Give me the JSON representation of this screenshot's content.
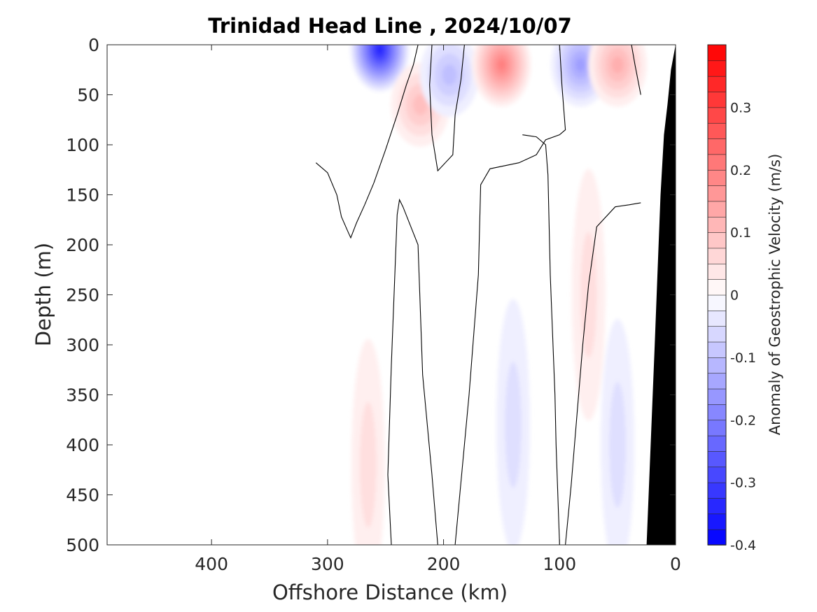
{
  "chart_data": {
    "type": "heatmap",
    "title": "Trinidad Head Line , 2024/10/07",
    "xlabel": "Offshore Distance (km)",
    "ylabel": "Depth (m)",
    "x_reversed": true,
    "y_reversed": true,
    "xlim": [
      0,
      490
    ],
    "ylim": [
      0,
      500
    ],
    "xticks": [
      400,
      300,
      200,
      100,
      0
    ],
    "yticks": [
      0,
      50,
      100,
      150,
      200,
      250,
      300,
      350,
      400,
      450,
      500
    ],
    "colorbar": {
      "label": "Anomaly of Geostrophic Velocity (m/s)",
      "range": [
        -0.4,
        0.4
      ],
      "step": 0.025,
      "ticks": [
        0.3,
        0.2,
        0.1,
        0,
        -0.1,
        -0.2,
        -0.3,
        -0.4
      ],
      "negative_color": "#0000ff",
      "positive_color": "#ff0000",
      "zero_color": "#ffffff"
    },
    "features": [
      {
        "kind": "core",
        "sign": "negative",
        "x_km": 255,
        "depth_m": 5,
        "peak": -0.35
      },
      {
        "kind": "core",
        "sign": "positive",
        "x_km": 220,
        "depth_m": 60,
        "peak": 0.1
      },
      {
        "kind": "core",
        "sign": "negative",
        "x_km": 195,
        "depth_m": 30,
        "peak": -0.1
      },
      {
        "kind": "core",
        "sign": "positive",
        "x_km": 150,
        "depth_m": 20,
        "peak": 0.2
      },
      {
        "kind": "core",
        "sign": "negative",
        "x_km": 82,
        "depth_m": 20,
        "peak": -0.15
      },
      {
        "kind": "core",
        "sign": "positive",
        "x_km": 50,
        "depth_m": 20,
        "peak": 0.12
      },
      {
        "kind": "deep_band",
        "sign": "positive",
        "x_km": 265,
        "depth_m": 420,
        "peak": 0.06
      },
      {
        "kind": "deep_band",
        "sign": "negative",
        "x_km": 140,
        "depth_m": 380,
        "peak": -0.05
      },
      {
        "kind": "deep_band",
        "sign": "positive",
        "x_km": 75,
        "depth_m": 250,
        "peak": 0.04
      },
      {
        "kind": "deep_band",
        "sign": "negative",
        "x_km": 50,
        "depth_m": 400,
        "peak": -0.05
      }
    ],
    "zero_contours": [
      [
        [
          310,
          118
        ],
        [
          300,
          128
        ],
        [
          292,
          150
        ],
        [
          288,
          172
        ],
        [
          282,
          188
        ],
        [
          280,
          193
        ],
        [
          275,
          178
        ],
        [
          268,
          160
        ],
        [
          260,
          138
        ],
        [
          250,
          105
        ],
        [
          240,
          70
        ],
        [
          232,
          40
        ],
        [
          226,
          20
        ],
        [
          222,
          0
        ]
      ],
      [
        [
          210,
          0
        ],
        [
          212,
          40
        ],
        [
          210,
          90
        ],
        [
          205,
          126
        ],
        [
          192,
          110
        ],
        [
          190,
          70
        ],
        [
          185,
          35
        ],
        [
          182,
          0
        ]
      ],
      [
        [
          100,
          0
        ],
        [
          98,
          40
        ],
        [
          95,
          85
        ],
        [
          100,
          90
        ],
        [
          112,
          95
        ],
        [
          120,
          110
        ],
        [
          135,
          118
        ],
        [
          160,
          124
        ],
        [
          168,
          140
        ],
        [
          170,
          230
        ],
        [
          178,
          350
        ],
        [
          190,
          500
        ]
      ],
      [
        [
          30,
          50
        ],
        [
          35,
          20
        ],
        [
          38,
          0
        ]
      ],
      [
        [
          30,
          158
        ],
        [
          40,
          160
        ],
        [
          52,
          162
        ],
        [
          68,
          182
        ],
        [
          75,
          240
        ],
        [
          80,
          300
        ],
        [
          90,
          440
        ],
        [
          95,
          500
        ]
      ],
      [
        [
          100,
          500
        ],
        [
          103,
          400
        ],
        [
          104,
          350
        ],
        [
          108,
          230
        ],
        [
          110,
          130
        ],
        [
          112,
          100
        ],
        [
          120,
          92
        ],
        [
          132,
          90
        ]
      ],
      [
        [
          205,
          500
        ],
        [
          210,
          430
        ],
        [
          218,
          330
        ],
        [
          222,
          200
        ],
        [
          235,
          162
        ],
        [
          238,
          155
        ],
        [
          240,
          170
        ],
        [
          245,
          320
        ],
        [
          248,
          430
        ],
        [
          245,
          500
        ]
      ]
    ],
    "topography": [
      [
        0,
        0
      ],
      [
        4,
        25
      ],
      [
        7,
        60
      ],
      [
        10,
        90
      ],
      [
        13,
        150
      ],
      [
        18,
        300
      ],
      [
        25,
        500
      ]
    ]
  }
}
